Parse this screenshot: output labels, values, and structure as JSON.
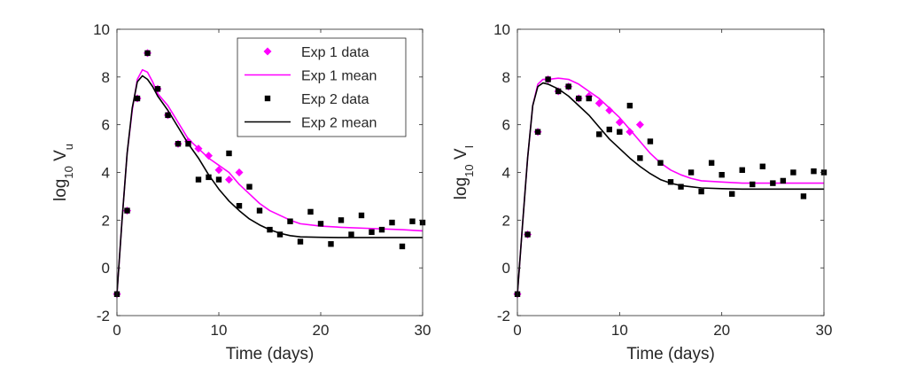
{
  "chart_data": [
    {
      "type": "scatter",
      "xlabel": "Time (days)",
      "ylabel": {
        "base": "log",
        "sub1": "10",
        "mid": " V",
        "sub2": "u"
      },
      "xlim": [
        0,
        30
      ],
      "ylim": [
        -2,
        10
      ],
      "xticks": [
        "0",
        "10",
        "20",
        "30"
      ],
      "yticks": [
        "-2",
        "0",
        "2",
        "4",
        "6",
        "8",
        "10"
      ],
      "legend_position": "top-right",
      "colors": {
        "exp1": "#ff00ff",
        "exp2": "#000000"
      },
      "series": [
        {
          "name": "Exp 1 data",
          "kind": "scatter",
          "marker": "diamond",
          "color": "#ff00ff",
          "x": [
            0,
            1,
            2,
            3,
            4,
            5,
            6,
            7,
            8,
            9,
            10,
            11,
            12
          ],
          "y": [
            -1.1,
            2.4,
            7.1,
            9.0,
            7.5,
            6.4,
            5.2,
            5.3,
            5.0,
            4.7,
            4.1,
            3.7,
            4.0
          ]
        },
        {
          "name": "Exp 1 mean",
          "kind": "line",
          "color": "#ff00ff",
          "x": [
            0,
            0.5,
            1,
            1.5,
            2,
            2.5,
            3,
            3.5,
            4,
            5,
            6,
            7,
            8,
            9,
            10,
            11,
            12,
            13,
            14,
            15,
            16,
            17,
            18,
            20,
            22,
            25,
            28,
            30
          ],
          "y": [
            -1.1,
            2.0,
            4.8,
            6.6,
            7.9,
            8.3,
            8.2,
            7.8,
            7.3,
            6.8,
            6.1,
            5.4,
            5.0,
            4.6,
            4.3,
            4.0,
            3.5,
            3.1,
            2.7,
            2.4,
            2.2,
            2.0,
            1.85,
            1.75,
            1.7,
            1.65,
            1.6,
            1.55
          ]
        },
        {
          "name": "Exp 2 data",
          "kind": "scatter",
          "marker": "square",
          "color": "#000000",
          "x": [
            0,
            1,
            2,
            3,
            4,
            5,
            6,
            7,
            8,
            9,
            10,
            11,
            12,
            13,
            14,
            15,
            16,
            17,
            18,
            19,
            20,
            21,
            22,
            23,
            24,
            25,
            26,
            27,
            28,
            29,
            30
          ],
          "y": [
            -1.1,
            2.4,
            7.1,
            9.0,
            7.5,
            6.4,
            5.2,
            5.2,
            3.7,
            3.8,
            3.7,
            4.8,
            2.6,
            3.4,
            2.4,
            1.6,
            1.4,
            1.95,
            1.1,
            2.35,
            1.85,
            1.0,
            2.0,
            1.4,
            2.2,
            1.5,
            1.6,
            1.9,
            0.9,
            1.95,
            1.9
          ]
        },
        {
          "name": "Exp 2 mean",
          "kind": "line",
          "color": "#000000",
          "x": [
            0,
            0.5,
            1,
            1.5,
            2,
            2.5,
            3,
            3.5,
            4,
            5,
            6,
            7,
            8,
            9,
            10,
            11,
            12,
            13,
            14,
            15,
            16,
            17,
            18,
            20,
            22,
            25,
            28,
            30
          ],
          "y": [
            -1.1,
            2.0,
            4.8,
            6.7,
            7.8,
            8.05,
            7.9,
            7.6,
            7.2,
            6.6,
            5.9,
            5.2,
            4.6,
            3.9,
            3.3,
            2.8,
            2.4,
            2.05,
            1.8,
            1.6,
            1.45,
            1.35,
            1.3,
            1.28,
            1.27,
            1.27,
            1.27,
            1.27
          ]
        }
      ]
    },
    {
      "type": "scatter",
      "xlabel": "Time (days)",
      "ylabel": {
        "base": "log",
        "sub1": "10",
        "mid": " V",
        "sub2": "I"
      },
      "xlim": [
        0,
        30
      ],
      "ylim": [
        -2,
        10
      ],
      "xticks": [
        "0",
        "10",
        "20",
        "30"
      ],
      "yticks": [
        "-2",
        "0",
        "2",
        "4",
        "6",
        "8",
        "10"
      ],
      "series": [
        {
          "name": "Exp 1 data",
          "kind": "scatter",
          "marker": "diamond",
          "color": "#ff00ff",
          "x": [
            0,
            1,
            2,
            3,
            4,
            5,
            6,
            7,
            8,
            9,
            10,
            11,
            12
          ],
          "y": [
            -1.1,
            1.4,
            5.7,
            7.9,
            7.4,
            7.6,
            7.1,
            7.2,
            6.9,
            6.6,
            6.1,
            5.7,
            6.0
          ]
        },
        {
          "name": "Exp 1 mean",
          "kind": "line",
          "color": "#ff00ff",
          "x": [
            0,
            0.5,
            1,
            1.5,
            2,
            2.5,
            3,
            4,
            5,
            6,
            7,
            8,
            9,
            10,
            11,
            12,
            13,
            14,
            15,
            16,
            17,
            18,
            20,
            22,
            25,
            28,
            30
          ],
          "y": [
            -1.1,
            1.8,
            4.6,
            6.8,
            7.7,
            7.9,
            7.9,
            7.95,
            7.9,
            7.7,
            7.4,
            7.1,
            6.7,
            6.3,
            5.8,
            5.3,
            4.8,
            4.4,
            4.1,
            3.9,
            3.75,
            3.65,
            3.6,
            3.55,
            3.55,
            3.55,
            3.55
          ]
        },
        {
          "name": "Exp 2 data",
          "kind": "scatter",
          "marker": "square",
          "color": "#000000",
          "x": [
            0,
            1,
            2,
            3,
            4,
            5,
            6,
            7,
            8,
            9,
            10,
            11,
            12,
            13,
            14,
            15,
            16,
            17,
            18,
            19,
            20,
            21,
            22,
            23,
            24,
            25,
            26,
            27,
            28,
            29,
            30
          ],
          "y": [
            -1.1,
            1.4,
            5.7,
            7.9,
            7.4,
            7.6,
            7.1,
            7.1,
            5.6,
            5.8,
            5.7,
            6.8,
            4.6,
            5.3,
            4.4,
            3.6,
            3.4,
            4.0,
            3.2,
            4.4,
            3.9,
            3.1,
            4.1,
            3.5,
            4.25,
            3.55,
            3.65,
            4.0,
            3.0,
            4.05,
            4.0
          ]
        },
        {
          "name": "Exp 2 mean",
          "kind": "line",
          "color": "#000000",
          "x": [
            0,
            0.5,
            1,
            1.5,
            2,
            2.5,
            3,
            4,
            5,
            6,
            7,
            8,
            9,
            10,
            11,
            12,
            13,
            14,
            15,
            16,
            17,
            18,
            20,
            22,
            25,
            28,
            30
          ],
          "y": [
            -1.1,
            1.8,
            4.6,
            6.8,
            7.6,
            7.75,
            7.7,
            7.5,
            7.2,
            6.8,
            6.4,
            5.9,
            5.4,
            5.0,
            4.6,
            4.25,
            3.95,
            3.7,
            3.55,
            3.45,
            3.4,
            3.35,
            3.32,
            3.3,
            3.3,
            3.3,
            3.3
          ]
        }
      ]
    }
  ]
}
